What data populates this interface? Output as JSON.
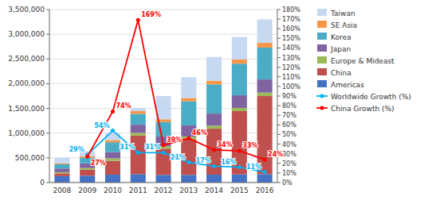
{
  "chart_data": {
    "type": "bar",
    "stacked": true,
    "grid": true,
    "legend": "right",
    "categories": [
      "2008",
      "2009",
      "2010",
      "2011",
      "2012",
      "2013",
      "2014",
      "2015",
      "2016"
    ],
    "ylim": [
      0,
      3500000
    ],
    "yticks": [
      0,
      {
        "value": 500000,
        "label": "500,000"
      },
      {
        "value": 1000000,
        "label": "1,000,000"
      },
      {
        "value": 1500000,
        "label": "1,500,000"
      },
      {
        "value": 2000000,
        "label": "2,000,000"
      },
      {
        "value": 2500000,
        "label": "2,500,000"
      },
      {
        "value": 3000000,
        "label": "3,000,000"
      },
      {
        "value": 3500000,
        "label": "3,500,000"
      }
    ],
    "y2lim": [
      0,
      1.8
    ],
    "y2ticks": [
      {
        "value": 0.0,
        "label": "0%"
      },
      {
        "value": 0.1,
        "label": "10%"
      },
      {
        "value": 0.2,
        "label": "20%"
      },
      {
        "value": 0.3,
        "label": "30%"
      },
      {
        "value": 0.4,
        "label": "40%"
      },
      {
        "value": 0.5,
        "label": "50%"
      },
      {
        "value": 0.6,
        "label": "60%"
      },
      {
        "value": 0.7,
        "label": "70%"
      },
      {
        "value": 0.8,
        "label": "80%"
      },
      {
        "value": 0.9,
        "label": "90%"
      },
      {
        "value": 1.0,
        "label": "100%"
      },
      {
        "value": 1.1,
        "label": "110%"
      },
      {
        "value": 1.2,
        "label": "120%"
      },
      {
        "value": 1.3,
        "label": "130%"
      },
      {
        "value": 1.4,
        "label": "140%"
      },
      {
        "value": 1.5,
        "label": "150%"
      },
      {
        "value": 1.6,
        "label": "160%"
      },
      {
        "value": 1.7,
        "label": "170%"
      },
      {
        "value": 1.8,
        "label": "180%"
      }
    ],
    "series": [
      {
        "name": "Americas",
        "type": "bar",
        "color": "#4472C4",
        "values": [
          130000,
          140000,
          160000,
          170000,
          155000,
          155000,
          160000,
          165000,
          170000
        ]
      },
      {
        "name": "China",
        "type": "bar",
        "color": "#C0504D",
        "values": [
          55000,
          120000,
          280000,
          780000,
          530000,
          720000,
          930000,
          1280000,
          1580000
        ]
      },
      {
        "name": "Europe & Mideast",
        "type": "bar",
        "color": "#9BBB59",
        "values": [
          25000,
          35000,
          50000,
          55000,
          50000,
          55000,
          60000,
          65000,
          70000
        ]
      },
      {
        "name": "Japan",
        "type": "bar",
        "color": "#8064A2",
        "values": [
          75000,
          95000,
          125000,
          165000,
          195000,
          225000,
          245000,
          255000,
          265000
        ]
      },
      {
        "name": "Korea",
        "type": "bar",
        "color": "#4BACC6",
        "values": [
          85000,
          115000,
          200000,
          220000,
          295000,
          490000,
          590000,
          640000,
          645000
        ]
      },
      {
        "name": "SE Asia",
        "type": "bar",
        "color": "#F79646",
        "values": [
          18000,
          28000,
          45000,
          55000,
          55000,
          65000,
          75000,
          85000,
          95000
        ]
      },
      {
        "name": "Taiwan",
        "type": "bar",
        "color": "#C6D9F1",
        "values": [
          115000,
          100000,
          135000,
          65000,
          470000,
          420000,
          480000,
          455000,
          475000
        ]
      },
      {
        "name": "Worldwide Growth (%)",
        "type": "line",
        "axis": "y2",
        "color": "#00B0F0",
        "marker": "circle",
        "data_labels": true,
        "values": [
          null,
          0.29,
          0.54,
          0.31,
          0.31,
          0.21,
          0.17,
          0.16,
          0.11
        ],
        "value_labels": [
          null,
          "29%",
          "54%",
          "31%",
          "31%",
          "21%",
          "17%",
          "16%",
          "11%"
        ]
      },
      {
        "name": "China Growth (%)",
        "type": "line",
        "axis": "y2",
        "color": "#FF0000",
        "marker": "circle",
        "data_labels": true,
        "values": [
          null,
          0.27,
          0.74,
          1.69,
          0.39,
          0.46,
          0.34,
          0.33,
          0.24
        ],
        "value_labels": [
          null,
          "27%",
          "74%",
          "169%",
          "39%",
          "46%",
          "34%",
          "33%",
          "24%"
        ]
      }
    ]
  }
}
